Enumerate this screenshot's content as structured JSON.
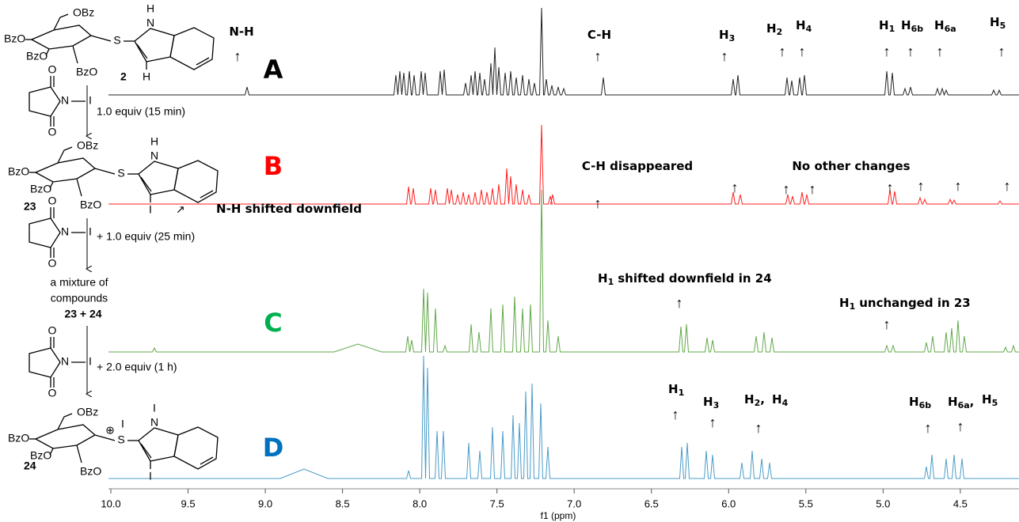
{
  "spectra": [
    {
      "label": "A",
      "color": "#000000",
      "line_color": "#222222"
    },
    {
      "label": "B",
      "color": "#ff0000",
      "line_color": "#ff2020"
    },
    {
      "label": "C",
      "color": "#00b050",
      "line_color": "#62a84a"
    },
    {
      "label": "D",
      "color": "#0070c0",
      "line_color": "#4a9cc8"
    }
  ],
  "annotations": [
    {
      "text": "N-H"
    },
    {
      "text": "C-H"
    },
    {
      "text": "H",
      "sub": "3"
    },
    {
      "text": "H",
      "sub": "2"
    },
    {
      "text": "H",
      "sub": "4"
    },
    {
      "text": "H",
      "sub": "1"
    },
    {
      "text": "H",
      "sub": "6b"
    },
    {
      "text": "H",
      "sub": "6a"
    },
    {
      "text": "H",
      "sub": "5"
    },
    {
      "text": "C-H disappeared"
    },
    {
      "text": "No other changes"
    },
    {
      "text": "N-H shifted downfield"
    },
    {
      "text": "H",
      "sub": "1",
      "tail": "shifted downfield in 24"
    },
    {
      "text": "H",
      "sub": "1",
      "tail": "unchanged in 23"
    },
    {
      "text": "H",
      "sub": "1"
    },
    {
      "text": "H",
      "sub": "3"
    },
    {
      "text": "H",
      "sub": "2",
      "tail": ","
    },
    {
      "text": "H",
      "sub": "4"
    },
    {
      "text": "H",
      "sub": "6b"
    },
    {
      "text": "H",
      "sub": "6a",
      "tail": ","
    },
    {
      "text": "H",
      "sub": "5"
    }
  ],
  "compounds": [
    {
      "number": "2",
      "atoms": [
        "OBz",
        "BzO",
        "BzO",
        "BzO",
        "S",
        "H",
        "N",
        "H"
      ]
    },
    {
      "number": "23",
      "atoms": [
        "OBz",
        "BzO",
        "BzO",
        "BzO",
        "S",
        "H",
        "N",
        "I"
      ]
    },
    {
      "number": "24",
      "atoms": [
        "OBz",
        "BzO",
        "BzO",
        "BzO",
        "S",
        "I",
        "N",
        "I",
        "I",
        "⊕"
      ]
    }
  ],
  "reagent": {
    "atoms": [
      "O",
      "N",
      "I",
      "O"
    ]
  },
  "steps": [
    "1.0 equiv (15 min)",
    "+ 1.0 equiv (25 min)",
    "+ 2.0 equiv (1 h)"
  ],
  "mixture": [
    "a mixture of",
    "compounds",
    "23 + 24"
  ],
  "x_axis": {
    "label": "f1 (ppm)",
    "lim": [
      10.0,
      4.12
    ],
    "ticks": [
      {
        "value": 10,
        "label": "10.0"
      },
      9.5,
      {
        "value": 9,
        "label": "9.0"
      },
      8.5,
      {
        "value": 8,
        "label": "8.0"
      },
      7.5,
      {
        "value": 7,
        "label": "7.0"
      },
      6.5,
      {
        "value": 6,
        "label": "6.0"
      },
      5.5,
      {
        "value": 5,
        "label": "5.0"
      },
      4.5
    ]
  }
}
